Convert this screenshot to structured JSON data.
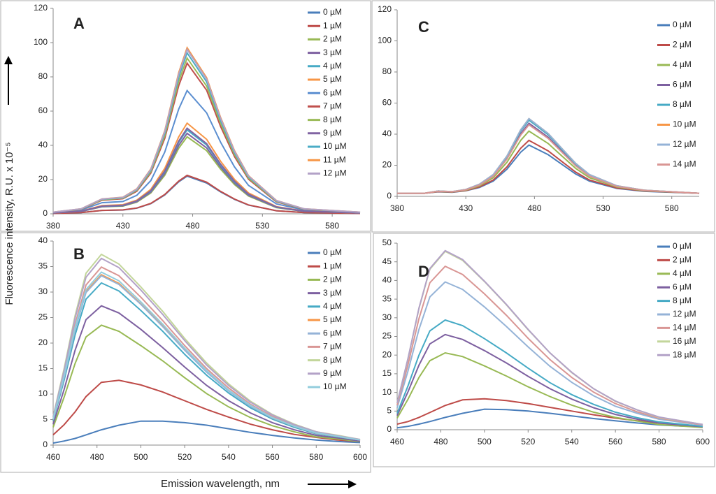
{
  "ylabel": "Fluorescence intensity, R.U. x 10⁻⁵",
  "xlabel": "Emission wavelength, nm",
  "chart_data": [
    {
      "type": "line",
      "panel_label": "A",
      "x": [
        380,
        400,
        415,
        430,
        440,
        450,
        460,
        470,
        476,
        490,
        500,
        510,
        520,
        540,
        560,
        600
      ],
      "xlim": [
        380,
        600
      ],
      "xticks": [
        380,
        430,
        480,
        530,
        580
      ],
      "ylim": [
        0,
        120
      ],
      "yticks": [
        0,
        20,
        40,
        60,
        80,
        100,
        120
      ],
      "series": [
        {
          "name": "0 µM",
          "color": "#4a7ebb",
          "values": [
            0.2,
            0.7,
            2,
            2.2,
            3.3,
            5.9,
            11,
            18.7,
            22,
            18,
            12.8,
            8.4,
            5.1,
            1.8,
            0.7,
            0.2
          ]
        },
        {
          "name": "1 µM",
          "color": "#be4b48",
          "values": [
            0.2,
            0.7,
            2,
            2.3,
            3.4,
            6.1,
            11.3,
            19.1,
            22.5,
            18.5,
            13.1,
            8.6,
            5.2,
            1.8,
            0.7,
            0.2
          ]
        },
        {
          "name": "2 µM",
          "color": "#98b954",
          "values": [
            0.5,
            1.4,
            4.1,
            4.5,
            6.8,
            12.2,
            22.5,
            38.3,
            45,
            36.9,
            26.1,
            17.1,
            10.4,
            3.6,
            1.4,
            0.5
          ]
        },
        {
          "name": "3 µM",
          "color": "#7d60a0",
          "values": [
            0.5,
            1.4,
            4.2,
            4.7,
            7.1,
            12.7,
            23.5,
            40,
            47,
            38.5,
            27.3,
            17.9,
            10.8,
            3.8,
            1.4,
            0.5
          ]
        },
        {
          "name": "4 µM",
          "color": "#46aac5",
          "values": [
            0.5,
            1.5,
            4.4,
            4.9,
            7.4,
            13.2,
            24.5,
            41.7,
            49,
            40.2,
            28.4,
            18.6,
            11.3,
            3.9,
            1.5,
            0.5
          ]
        },
        {
          "name": "5 µM",
          "color": "#f79646",
          "values": [
            0.5,
            1.6,
            4.8,
            5.3,
            8,
            14.3,
            26.5,
            45,
            53,
            43.5,
            30.7,
            20.1,
            12.2,
            4.2,
            1.6,
            0.5
          ]
        },
        {
          "name": "6 µM",
          "color": "#5b8ed0",
          "values": [
            0.7,
            2.2,
            6.5,
            7.2,
            10.8,
            19.4,
            36,
            61.2,
            72,
            59,
            41.8,
            27.4,
            16.6,
            5.8,
            2.2,
            0.7
          ]
        },
        {
          "name": "7 µM",
          "color": "#c0504d",
          "values": [
            0.9,
            2.6,
            7.9,
            8.8,
            13.2,
            23.8,
            44,
            74.8,
            88,
            72.2,
            51,
            33.4,
            20.2,
            7,
            2.6,
            0.9
          ]
        },
        {
          "name": "8 µM",
          "color": "#9bbb59",
          "values": [
            0.9,
            2.7,
            8.2,
            9.1,
            13.7,
            24.6,
            45.5,
            77.4,
            91,
            74.6,
            52.8,
            34.6,
            20.9,
            7.3,
            2.7,
            0.9
          ]
        },
        {
          "name": "9 µM",
          "color": "#8064a2",
          "values": [
            0.5,
            1.5,
            4.5,
            5,
            7.5,
            13.5,
            25,
            42.5,
            50,
            41,
            29,
            19,
            11.5,
            4,
            1.5,
            0.5
          ]
        },
        {
          "name": "10 µM",
          "color": "#4bacc6",
          "values": [
            0.9,
            2.8,
            8.5,
            9.4,
            14.1,
            25.4,
            47,
            79.9,
            94,
            77.1,
            54.5,
            35.7,
            21.6,
            7.5,
            2.8,
            0.9
          ]
        },
        {
          "name": "11 µM",
          "color": "#f79646",
          "values": [
            1,
            2.9,
            8.7,
            9.7,
            14.6,
            26.2,
            48.5,
            82.5,
            97,
            79.5,
            56.3,
            36.9,
            22.3,
            7.8,
            2.9,
            1
          ]
        },
        {
          "name": "12 µM",
          "color": "#b3a2c7",
          "values": [
            1,
            2.9,
            8.6,
            9.6,
            14.4,
            25.9,
            48,
            81.6,
            96,
            78.7,
            55.7,
            36.5,
            22.1,
            7.7,
            2.9,
            1
          ]
        }
      ]
    },
    {
      "type": "line",
      "panel_label": "B",
      "x": [
        460,
        465,
        470,
        475,
        482,
        490,
        500,
        510,
        520,
        530,
        540,
        550,
        560,
        570,
        580,
        590,
        600
      ],
      "xlim": [
        460,
        600
      ],
      "xticks": [
        460,
        480,
        500,
        520,
        540,
        560,
        580,
        600
      ],
      "ylim": [
        0,
        40
      ],
      "yticks": [
        0,
        5,
        10,
        15,
        20,
        25,
        30,
        35,
        40
      ],
      "series": [
        {
          "name": "0 µM",
          "color": "#4a7ebb",
          "values": [
            0.4,
            0.8,
            1.3,
            2,
            3,
            3.9,
            4.7,
            4.7,
            4.4,
            3.9,
            3.2,
            2.5,
            1.9,
            1.4,
            1,
            0.7,
            0.5
          ]
        },
        {
          "name": "1 µM",
          "color": "#be4b48",
          "values": [
            2,
            4,
            6.5,
            9.5,
            12.3,
            12.7,
            11.8,
            10.4,
            8.7,
            7,
            5.5,
            4.1,
            3,
            2.1,
            1.5,
            1,
            0.7
          ]
        },
        {
          "name": "2 µM",
          "color": "#98b954",
          "values": [
            3.5,
            9.4,
            16,
            21.2,
            23.5,
            22.3,
            19.5,
            16.5,
            13.2,
            10.1,
            7.5,
            5.4,
            3.8,
            2.6,
            1.6,
            1.2,
            0.7
          ]
        },
        {
          "name": "3 µM",
          "color": "#7d60a0",
          "values": [
            4.1,
            10.9,
            18.6,
            24.6,
            27.3,
            25.9,
            22.7,
            19.1,
            15.3,
            11.7,
            8.7,
            6.3,
            4.4,
            3,
            1.9,
            1.4,
            0.8
          ]
        },
        {
          "name": "4 µM",
          "color": "#46aac5",
          "values": [
            4.8,
            12.7,
            21.6,
            28.6,
            31.8,
            30.2,
            26.4,
            22.3,
            17.8,
            13.7,
            10.2,
            7.3,
            5.1,
            3.5,
            2.2,
            1.6,
            1
          ]
        },
        {
          "name": "5 µM",
          "color": "#f79646",
          "values": [
            5,
            13.4,
            22.7,
            30.1,
            33.4,
            31.7,
            27.7,
            23.4,
            18.7,
            14.4,
            10.7,
            7.7,
            5.3,
            3.7,
            2.3,
            1.7,
            1
          ]
        },
        {
          "name": "6 µM",
          "color": "#95b3d7",
          "values": [
            5,
            13.3,
            22.6,
            29.9,
            33.2,
            31.5,
            27.6,
            23.2,
            18.6,
            14.3,
            10.6,
            7.6,
            5.3,
            3.7,
            2.3,
            1.7,
            1
          ]
        },
        {
          "name": "7 µM",
          "color": "#d99694",
          "values": [
            5.2,
            14,
            23.7,
            31.4,
            34.9,
            33.2,
            29,
            24.4,
            19.5,
            15,
            11.2,
            8,
            5.6,
            3.8,
            2.4,
            1.7,
            1
          ]
        },
        {
          "name": "8 µM",
          "color": "#c3d69b",
          "values": [
            5.6,
            15,
            25.4,
            33.7,
            37.4,
            35.5,
            31,
            26.2,
            20.9,
            16.1,
            12,
            8.6,
            6,
            4.1,
            2.6,
            1.9,
            1.1
          ]
        },
        {
          "name": "9 µM",
          "color": "#b3a2c7",
          "values": [
            5.5,
            14.6,
            24.9,
            32.9,
            36.6,
            34.8,
            30.4,
            25.6,
            20.5,
            15.7,
            11.7,
            8.4,
            5.9,
            4,
            2.6,
            1.8,
            1.1
          ]
        },
        {
          "name": "10 µM",
          "color": "#93cddd",
          "values": [
            5.1,
            13.6,
            23.1,
            30.5,
            33.9,
            32.2,
            28.1,
            23.7,
            19,
            14.6,
            10.8,
            7.8,
            5.4,
            3.7,
            2.4,
            1.7,
            1
          ]
        }
      ]
    },
    {
      "type": "line",
      "panel_label": "C",
      "x": [
        380,
        400,
        410,
        420,
        430,
        440,
        450,
        460,
        470,
        476,
        490,
        500,
        510,
        520,
        540,
        560,
        600
      ],
      "xlim": [
        380,
        600
      ],
      "xticks": [
        380,
        430,
        480,
        530,
        580
      ],
      "ylim": [
        0,
        120
      ],
      "yticks": [
        0,
        20,
        40,
        60,
        80,
        100,
        120
      ],
      "series": [
        {
          "name": "0 µM",
          "color": "#4a7ebb",
          "values": [
            2,
            2,
            2.9,
            2.6,
            3.6,
            5.7,
            9.8,
            17.5,
            28.4,
            33,
            26.8,
            20.6,
            14.4,
            9.8,
            5.1,
            3.2,
            2
          ]
        },
        {
          "name": "2 µM",
          "color": "#be4b48",
          "values": [
            2,
            2,
            3,
            2.7,
            3.7,
            6.1,
            10.5,
            19,
            30.9,
            36,
            29.2,
            22.4,
            15.6,
            10.5,
            5.4,
            3.4,
            2
          ]
        },
        {
          "name": "4 µM",
          "color": "#98b954",
          "values": [
            2,
            2,
            3.2,
            2.8,
            4,
            6.8,
            12,
            22,
            36,
            42,
            34,
            26,
            18,
            12,
            6,
            3.6,
            2
          ]
        },
        {
          "name": "6 µM",
          "color": "#7d60a0",
          "values": [
            2,
            2,
            3.4,
            2.9,
            4.3,
            7.4,
            13.3,
            24.5,
            40.3,
            47,
            38,
            29,
            20,
            13.3,
            6.5,
            3.8,
            2
          ]
        },
        {
          "name": "8 µM",
          "color": "#46aac5",
          "values": [
            2,
            2,
            3.4,
            2.9,
            4.4,
            7.6,
            13.8,
            25.5,
            42,
            49,
            39.6,
            30.2,
            20.8,
            13.8,
            6.7,
            3.9,
            2
          ]
        },
        {
          "name": "10 µM",
          "color": "#f79646",
          "values": [
            2,
            2,
            3.4,
            3,
            4.4,
            7.8,
            14,
            26,
            42.8,
            50,
            40.4,
            30.8,
            21.2,
            14,
            6.8,
            3.9,
            2
          ]
        },
        {
          "name": "12 µM",
          "color": "#95b3d7",
          "values": [
            2,
            2,
            3.4,
            3,
            4.4,
            7.8,
            14,
            26,
            42.8,
            50,
            40.4,
            30.8,
            21.2,
            14,
            6.8,
            3.9,
            2
          ]
        },
        {
          "name": "14 µM",
          "color": "#d99694",
          "values": [
            2,
            2,
            3.3,
            2.9,
            4.2,
            7.3,
            13,
            24,
            39.4,
            46,
            37.2,
            28.4,
            19.6,
            13,
            6.4,
            3.8,
            2
          ]
        }
      ]
    },
    {
      "type": "line",
      "panel_label": "D",
      "x": [
        460,
        465,
        470,
        475,
        482,
        490,
        500,
        510,
        520,
        530,
        540,
        550,
        560,
        570,
        580,
        590,
        600
      ],
      "xlim": [
        460,
        600
      ],
      "xticks": [
        460,
        480,
        500,
        520,
        540,
        560,
        580,
        600
      ],
      "ylim": [
        0,
        50
      ],
      "yticks": [
        0,
        5,
        10,
        15,
        20,
        25,
        30,
        35,
        40,
        45,
        50
      ],
      "series": [
        {
          "name": "0 µM",
          "color": "#4a7ebb",
          "values": [
            0.5,
            0.9,
            1.5,
            2.2,
            3.3,
            4.4,
            5.5,
            5.4,
            5,
            4.4,
            3.7,
            3,
            2.4,
            1.8,
            1.3,
            1,
            0.8
          ]
        },
        {
          "name": "2 µM",
          "color": "#be4b48",
          "values": [
            1.5,
            2.2,
            3.3,
            4.6,
            6.5,
            8,
            8.3,
            7.8,
            7,
            6,
            5,
            4,
            3.1,
            2.4,
            1.8,
            1.3,
            1
          ]
        },
        {
          "name": "4 µM",
          "color": "#98b954",
          "values": [
            3.1,
            8.2,
            14,
            18.5,
            20.6,
            19.6,
            17.1,
            14.4,
            11.5,
            8.9,
            6.6,
            4.7,
            3.3,
            2.3,
            1.4,
            1,
            0.6
          ]
        },
        {
          "name": "6 µM",
          "color": "#7d60a0",
          "values": [
            3.8,
            10.2,
            17.3,
            23,
            25.5,
            24.2,
            21.2,
            17.9,
            14.3,
            11,
            8.2,
            5.9,
            4.1,
            2.8,
            1.8,
            1.3,
            0.8
          ]
        },
        {
          "name": "8 µM",
          "color": "#46aac5",
          "values": [
            4.4,
            11.8,
            20,
            26.5,
            29.4,
            27.9,
            24.4,
            20.6,
            16.5,
            12.6,
            9.4,
            6.8,
            4.7,
            3.2,
            2.1,
            1.5,
            0.9
          ]
        },
        {
          "name": "12 µM",
          "color": "#95b3d7",
          "values": [
            5.9,
            15.8,
            26.9,
            35.6,
            39.6,
            37.6,
            32.9,
            27.7,
            22.2,
            17,
            12.7,
            9.1,
            6.3,
            4.4,
            2.8,
            2,
            1.2
          ]
        },
        {
          "name": "14 µM",
          "color": "#d99694",
          "values": [
            6.6,
            17.5,
            29.8,
            39.4,
            43.8,
            41.6,
            36.4,
            30.7,
            24.5,
            18.8,
            14,
            10.1,
            7,
            4.8,
            3.1,
            2.2,
            1.3
          ]
        },
        {
          "name": "16 µM",
          "color": "#c3d69b",
          "values": [
            7.2,
            19.1,
            32.5,
            43,
            47.8,
            45.4,
            39.7,
            33.5,
            26.8,
            20.6,
            15.3,
            11,
            7.6,
            5.3,
            3.3,
            2.4,
            1.4
          ]
        },
        {
          "name": "18 µM",
          "color": "#b3a2c7",
          "values": [
            7.2,
            19.2,
            32.6,
            43.2,
            48,
            45.6,
            39.8,
            33.6,
            26.9,
            20.6,
            15.4,
            11,
            7.7,
            5.3,
            3.4,
            2.4,
            1.4
          ]
        }
      ]
    }
  ]
}
